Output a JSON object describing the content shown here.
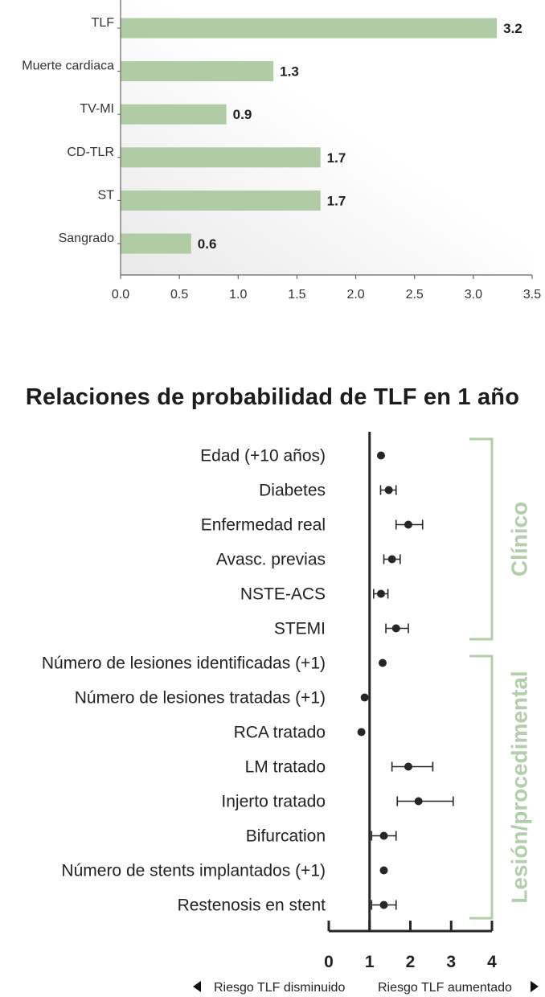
{
  "colors": {
    "bar": "#afcca4",
    "group": "#b3ceaa",
    "point": "#262626",
    "axis": "#262626"
  },
  "bar_chart": {
    "chart_data": {
      "type": "bar",
      "orientation": "horizontal",
      "categories": [
        "TLF",
        "Muerte cardiaca",
        "TV-MI",
        "CD-TLR",
        "ST",
        "Sangrado"
      ],
      "values": [
        3.2,
        1.3,
        0.9,
        1.7,
        1.7,
        0.6
      ],
      "value_labels": [
        "3.2",
        "1.3",
        "0.9",
        "1.7",
        "1.7",
        "0.6"
      ],
      "xlim": [
        0,
        3.5
      ],
      "x_ticks": [
        "0.0",
        "0.5",
        "1.0",
        "1.5",
        "2.0",
        "2.5",
        "3.0",
        "3.5"
      ],
      "grid": false
    }
  },
  "forest_plot": {
    "title": "Relaciones de probabilidad de TLF en 1 año",
    "chart_data": {
      "type": "scatter",
      "subtype": "forest",
      "categories": [
        "Edad (+10 años)",
        "Diabetes",
        "Enfermedad real",
        "Avasc. previas",
        "NSTE-ACS",
        "STEMI",
        "Número de lesiones identificadas (+1)",
        "Número de lesiones tratadas (+1)",
        "RCA tratado",
        "LM tratado",
        "Injerto tratado",
        "Bifurcation",
        "Número de stents implantados (+1)",
        "Restenosis en stent"
      ],
      "estimates": [
        1.28,
        1.47,
        1.95,
        1.55,
        1.28,
        1.65,
        1.32,
        0.88,
        0.8,
        1.95,
        2.2,
        1.35,
        1.35,
        1.35
      ],
      "ci_lower": [
        null,
        1.27,
        1.65,
        1.35,
        1.1,
        1.4,
        null,
        null,
        null,
        1.55,
        1.68,
        1.05,
        null,
        1.05
      ],
      "ci_upper": [
        null,
        1.65,
        2.3,
        1.75,
        1.45,
        1.95,
        null,
        null,
        null,
        2.55,
        3.05,
        1.65,
        null,
        1.65
      ],
      "xlim": [
        0,
        4
      ],
      "x_ticks": [
        "0",
        "1",
        "2",
        "3",
        "4"
      ],
      "reference_line": 1
    },
    "groups": [
      {
        "label": "Clínico",
        "from_row": 0,
        "to_row": 5
      },
      {
        "label": "Lesión/procedimental",
        "from_row": 6,
        "to_row": 13
      }
    ],
    "risk_left": "Riesgo TLF disminuido",
    "risk_right": "Riesgo TLF aumentado"
  }
}
